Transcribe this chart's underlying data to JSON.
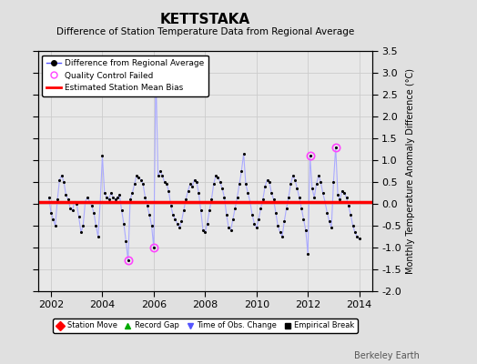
{
  "title": "KETTSTAKA",
  "subtitle": "Difference of Station Temperature Data from Regional Average",
  "ylabel": "Monthly Temperature Anomaly Difference (°C)",
  "bias": 0.05,
  "ylim": [
    -2.0,
    3.5
  ],
  "xlim": [
    2001.5,
    2014.5
  ],
  "xticks": [
    2002,
    2004,
    2006,
    2008,
    2010,
    2012,
    2014
  ],
  "yticks": [
    -2.0,
    -1.5,
    -1.0,
    -0.5,
    0.0,
    0.5,
    1.0,
    1.5,
    2.0,
    2.5,
    3.0,
    3.5
  ],
  "background_color": "#e0e0e0",
  "plot_bg_color": "#e8e8e8",
  "line_color": "#5555ff",
  "line_color_light": "#aaaaff",
  "marker_color": "#000000",
  "bias_color": "#ff0000",
  "qc_fail_color": "#ff44ff",
  "watermark": "Berkeley Earth",
  "data": [
    [
      2001.917,
      0.15
    ],
    [
      2002.0,
      -0.2
    ],
    [
      2002.083,
      -0.35
    ],
    [
      2002.167,
      -0.5
    ],
    [
      2002.25,
      0.1
    ],
    [
      2002.333,
      0.55
    ],
    [
      2002.417,
      0.65
    ],
    [
      2002.5,
      0.5
    ],
    [
      2002.583,
      0.2
    ],
    [
      2002.667,
      0.1
    ],
    [
      2002.75,
      -0.1
    ],
    [
      2002.833,
      -0.15
    ],
    [
      2002.917,
      0.05
    ],
    [
      2003.0,
      0.0
    ],
    [
      2003.083,
      -0.3
    ],
    [
      2003.167,
      -0.65
    ],
    [
      2003.25,
      -0.5
    ],
    [
      2003.333,
      0.05
    ],
    [
      2003.417,
      0.15
    ],
    [
      2003.5,
      0.05
    ],
    [
      2003.583,
      -0.05
    ],
    [
      2003.667,
      -0.2
    ],
    [
      2003.75,
      -0.5
    ],
    [
      2003.833,
      -0.75
    ],
    [
      2003.917,
      0.05
    ],
    [
      2004.0,
      1.1
    ],
    [
      2004.083,
      0.25
    ],
    [
      2004.167,
      0.15
    ],
    [
      2004.25,
      0.1
    ],
    [
      2004.333,
      0.25
    ],
    [
      2004.417,
      0.15
    ],
    [
      2004.5,
      0.1
    ],
    [
      2004.583,
      0.15
    ],
    [
      2004.667,
      0.2
    ],
    [
      2004.75,
      -0.15
    ],
    [
      2004.833,
      -0.45
    ],
    [
      2004.917,
      -0.85
    ],
    [
      2005.0,
      -1.3
    ],
    [
      2005.083,
      0.1
    ],
    [
      2005.167,
      0.25
    ],
    [
      2005.25,
      0.45
    ],
    [
      2005.333,
      0.65
    ],
    [
      2005.417,
      0.6
    ],
    [
      2005.5,
      0.55
    ],
    [
      2005.583,
      0.45
    ],
    [
      2005.667,
      0.15
    ],
    [
      2005.75,
      -0.05
    ],
    [
      2005.833,
      -0.25
    ],
    [
      2005.917,
      -0.5
    ],
    [
      2006.0,
      -1.0
    ],
    [
      2006.083,
      3.0
    ],
    [
      2006.167,
      0.65
    ],
    [
      2006.25,
      0.75
    ],
    [
      2006.333,
      0.65
    ],
    [
      2006.417,
      0.5
    ],
    [
      2006.5,
      0.45
    ],
    [
      2006.583,
      0.3
    ],
    [
      2006.667,
      -0.05
    ],
    [
      2006.75,
      -0.25
    ],
    [
      2006.833,
      -0.35
    ],
    [
      2006.917,
      -0.45
    ],
    [
      2007.0,
      -0.55
    ],
    [
      2007.083,
      -0.4
    ],
    [
      2007.167,
      -0.15
    ],
    [
      2007.25,
      0.1
    ],
    [
      2007.333,
      0.3
    ],
    [
      2007.417,
      0.45
    ],
    [
      2007.5,
      0.4
    ],
    [
      2007.583,
      0.55
    ],
    [
      2007.667,
      0.5
    ],
    [
      2007.75,
      0.25
    ],
    [
      2007.833,
      -0.15
    ],
    [
      2007.917,
      -0.6
    ],
    [
      2008.0,
      -0.65
    ],
    [
      2008.083,
      -0.45
    ],
    [
      2008.167,
      -0.15
    ],
    [
      2008.25,
      0.1
    ],
    [
      2008.333,
      0.45
    ],
    [
      2008.417,
      0.65
    ],
    [
      2008.5,
      0.6
    ],
    [
      2008.583,
      0.5
    ],
    [
      2008.667,
      0.35
    ],
    [
      2008.75,
      0.15
    ],
    [
      2008.833,
      -0.25
    ],
    [
      2008.917,
      -0.55
    ],
    [
      2009.0,
      -0.6
    ],
    [
      2009.083,
      -0.35
    ],
    [
      2009.167,
      -0.1
    ],
    [
      2009.25,
      0.15
    ],
    [
      2009.333,
      0.45
    ],
    [
      2009.417,
      0.75
    ],
    [
      2009.5,
      1.15
    ],
    [
      2009.583,
      0.45
    ],
    [
      2009.667,
      0.25
    ],
    [
      2009.75,
      0.05
    ],
    [
      2009.833,
      -0.25
    ],
    [
      2009.917,
      -0.45
    ],
    [
      2010.0,
      -0.55
    ],
    [
      2010.083,
      -0.35
    ],
    [
      2010.167,
      -0.1
    ],
    [
      2010.25,
      0.1
    ],
    [
      2010.333,
      0.4
    ],
    [
      2010.417,
      0.55
    ],
    [
      2010.5,
      0.5
    ],
    [
      2010.583,
      0.25
    ],
    [
      2010.667,
      0.1
    ],
    [
      2010.75,
      -0.2
    ],
    [
      2010.833,
      -0.5
    ],
    [
      2010.917,
      -0.65
    ],
    [
      2011.0,
      -0.75
    ],
    [
      2011.083,
      -0.4
    ],
    [
      2011.167,
      -0.1
    ],
    [
      2011.25,
      0.15
    ],
    [
      2011.333,
      0.45
    ],
    [
      2011.417,
      0.65
    ],
    [
      2011.5,
      0.55
    ],
    [
      2011.583,
      0.35
    ],
    [
      2011.667,
      0.15
    ],
    [
      2011.75,
      -0.1
    ],
    [
      2011.833,
      -0.35
    ],
    [
      2011.917,
      -0.6
    ],
    [
      2012.0,
      -1.15
    ],
    [
      2012.083,
      1.1
    ],
    [
      2012.167,
      0.35
    ],
    [
      2012.25,
      0.15
    ],
    [
      2012.333,
      0.45
    ],
    [
      2012.417,
      0.65
    ],
    [
      2012.5,
      0.5
    ],
    [
      2012.583,
      0.25
    ],
    [
      2012.667,
      0.05
    ],
    [
      2012.75,
      -0.2
    ],
    [
      2012.833,
      -0.4
    ],
    [
      2012.917,
      -0.55
    ],
    [
      2013.0,
      0.5
    ],
    [
      2013.083,
      1.3
    ],
    [
      2013.167,
      0.2
    ],
    [
      2013.25,
      0.1
    ],
    [
      2013.333,
      0.3
    ],
    [
      2013.417,
      0.25
    ],
    [
      2013.5,
      0.15
    ],
    [
      2013.583,
      -0.05
    ],
    [
      2013.667,
      -0.25
    ],
    [
      2013.75,
      -0.5
    ],
    [
      2013.833,
      -0.65
    ],
    [
      2013.917,
      -0.75
    ],
    [
      2014.0,
      -0.8
    ]
  ],
  "qc_fail_points": [
    [
      2005.0,
      -1.3
    ],
    [
      2006.0,
      -1.0
    ],
    [
      2012.083,
      1.1
    ],
    [
      2013.083,
      1.3
    ]
  ]
}
